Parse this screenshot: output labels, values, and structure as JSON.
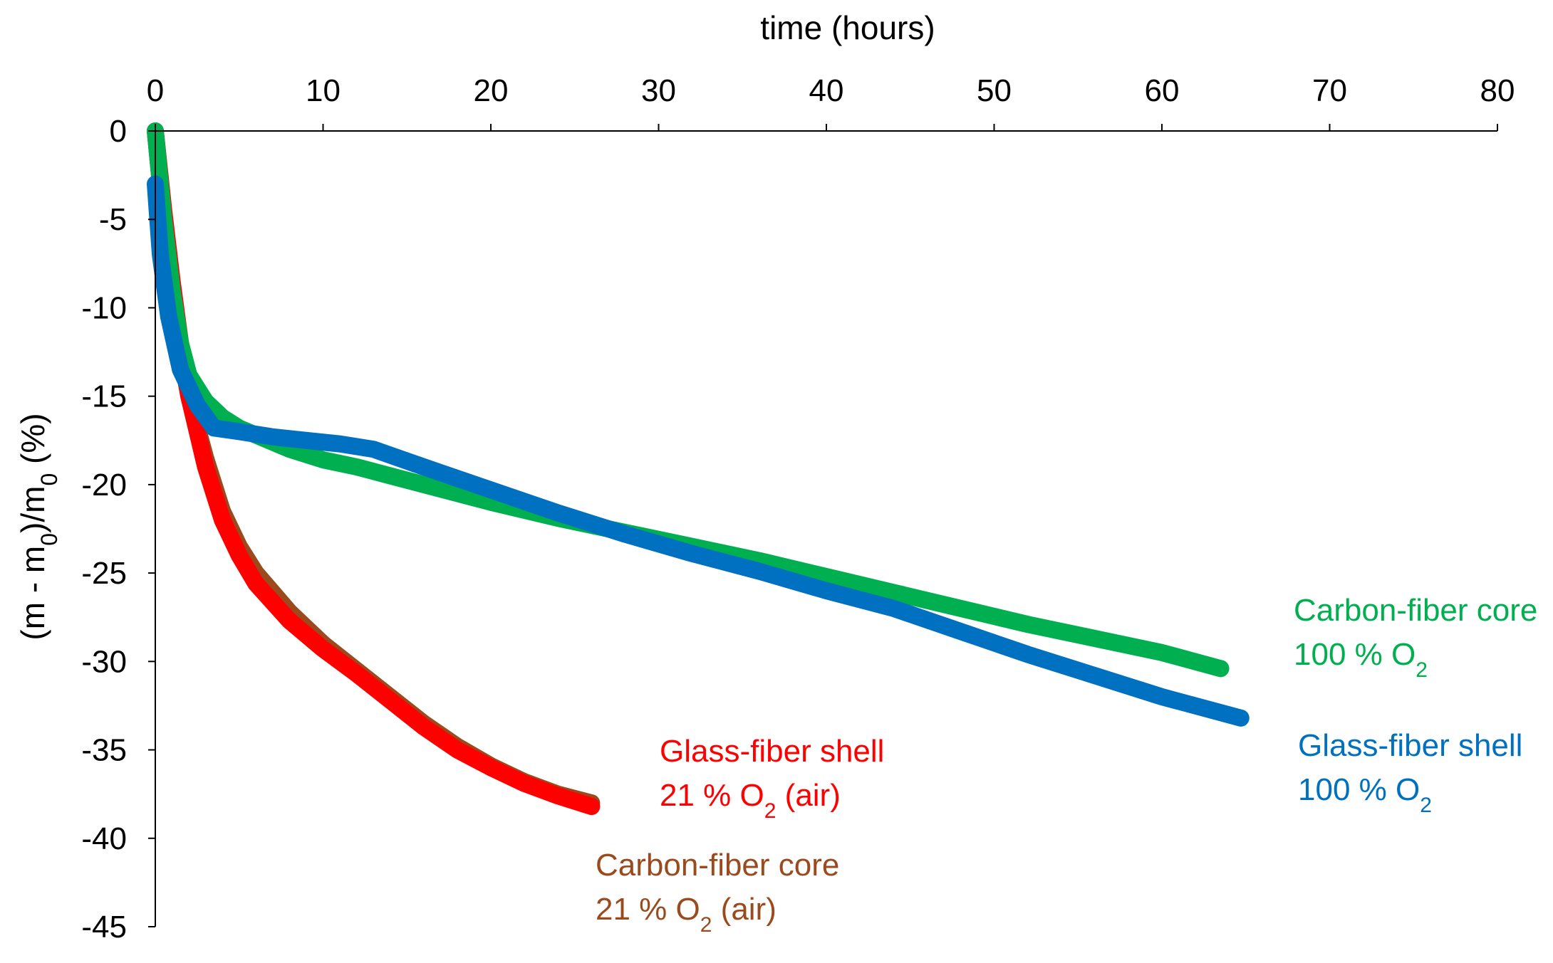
{
  "chart_data": {
    "type": "line",
    "title": "",
    "xlabel": "time (hours)",
    "ylabel_parts": [
      "(m - m",
      "0",
      ")/m",
      "0",
      " (%)"
    ],
    "xlim": [
      0,
      80
    ],
    "ylim": [
      -45,
      0
    ],
    "x_ticks": [
      0,
      10,
      20,
      30,
      40,
      50,
      60,
      70,
      80
    ],
    "y_ticks": [
      0,
      -5,
      -10,
      -15,
      -20,
      -25,
      -30,
      -35,
      -40,
      -45
    ],
    "x_axis_position": "top",
    "grid": false,
    "series": [
      {
        "key": "carbon_air",
        "color": "#9b4a1e",
        "points": [
          [
            0,
            0
          ],
          [
            0.5,
            -5
          ],
          [
            1,
            -9
          ],
          [
            1.5,
            -12.5
          ],
          [
            2,
            -15
          ],
          [
            3,
            -18.5
          ],
          [
            4,
            -21.5
          ],
          [
            5,
            -23.5
          ],
          [
            6,
            -25
          ],
          [
            8,
            -27.2
          ],
          [
            10,
            -29
          ],
          [
            12,
            -30.5
          ],
          [
            14,
            -32
          ],
          [
            16,
            -33.5
          ],
          [
            18,
            -34.8
          ],
          [
            20,
            -35.9
          ],
          [
            22,
            -36.8
          ],
          [
            24,
            -37.5
          ],
          [
            26,
            -38
          ]
        ]
      },
      {
        "key": "glass_air",
        "color": "#ff0000",
        "points": [
          [
            0,
            0
          ],
          [
            0.5,
            -4.5
          ],
          [
            1,
            -8.5
          ],
          [
            1.5,
            -12
          ],
          [
            2,
            -15
          ],
          [
            3,
            -19
          ],
          [
            4,
            -22
          ],
          [
            5,
            -24
          ],
          [
            6,
            -25.6
          ],
          [
            8,
            -27.7
          ],
          [
            10,
            -29.3
          ],
          [
            12,
            -30.7
          ],
          [
            14,
            -32.2
          ],
          [
            16,
            -33.7
          ],
          [
            18,
            -35
          ],
          [
            20,
            -36
          ],
          [
            22,
            -36.9
          ],
          [
            24,
            -37.6
          ],
          [
            26,
            -38.2
          ]
        ]
      },
      {
        "key": "carbon_o2",
        "color": "#00b050",
        "points": [
          [
            0,
            0
          ],
          [
            0.5,
            -5
          ],
          [
            1,
            -9
          ],
          [
            1.5,
            -12
          ],
          [
            2,
            -13.8
          ],
          [
            3,
            -15.3
          ],
          [
            4,
            -16.2
          ],
          [
            5,
            -16.8
          ],
          [
            6,
            -17.2
          ],
          [
            8,
            -18
          ],
          [
            10,
            -18.6
          ],
          [
            12,
            -19
          ],
          [
            14,
            -19.5
          ],
          [
            16,
            -20
          ],
          [
            20,
            -21
          ],
          [
            24,
            -21.9
          ],
          [
            28,
            -22.7
          ],
          [
            32,
            -23.5
          ],
          [
            36,
            -24.3
          ],
          [
            40,
            -25.2
          ],
          [
            44,
            -26.1
          ],
          [
            48,
            -27
          ],
          [
            52,
            -27.9
          ],
          [
            56,
            -28.7
          ],
          [
            60,
            -29.5
          ],
          [
            63.5,
            -30.4
          ]
        ]
      },
      {
        "key": "glass_o2",
        "color": "#0070c0",
        "points": [
          [
            0,
            -3
          ],
          [
            0.3,
            -7
          ],
          [
            0.8,
            -10.5
          ],
          [
            1.5,
            -13.5
          ],
          [
            2.5,
            -15.5
          ],
          [
            3.5,
            -16.8
          ],
          [
            5,
            -17
          ],
          [
            7,
            -17.3
          ],
          [
            9,
            -17.5
          ],
          [
            11,
            -17.7
          ],
          [
            13,
            -18
          ],
          [
            16,
            -19
          ],
          [
            20,
            -20.3
          ],
          [
            24,
            -21.6
          ],
          [
            28,
            -22.8
          ],
          [
            32,
            -23.9
          ],
          [
            36,
            -24.9
          ],
          [
            40,
            -26
          ],
          [
            44,
            -27
          ],
          [
            48,
            -28.3
          ],
          [
            52,
            -29.6
          ],
          [
            56,
            -30.8
          ],
          [
            60,
            -32
          ],
          [
            64.7,
            -33.2
          ]
        ]
      }
    ],
    "annotations": [
      {
        "key": "glass_air",
        "color": "#ff0000",
        "line1": "Glass-fiber shell",
        "line2_parts": [
          "21 % O",
          "2",
          " (air)"
        ]
      },
      {
        "key": "carbon_air",
        "color": "#9b4a1e",
        "line1": "Carbon-fiber core",
        "line2_parts": [
          "21 % O",
          "2",
          " (air)"
        ]
      },
      {
        "key": "carbon_o2",
        "color": "#00b050",
        "line1": "Carbon-fiber core",
        "line2_parts": [
          "100 % O",
          "2",
          ""
        ]
      },
      {
        "key": "glass_o2",
        "color": "#0070c0",
        "line1": "Glass-fiber shell",
        "line2_parts": [
          "100 % O",
          "2",
          ""
        ]
      }
    ]
  }
}
